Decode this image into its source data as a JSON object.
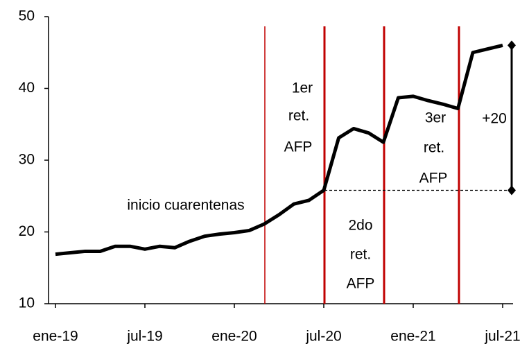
{
  "chart_data": {
    "type": "line",
    "categories": [
      "ene-19",
      null,
      null,
      null,
      null,
      null,
      "jul-19",
      null,
      null,
      null,
      null,
      null,
      "ene-20",
      null,
      null,
      null,
      null,
      null,
      "jul-20",
      null,
      null,
      null,
      null,
      null,
      "ene-21",
      null,
      null,
      null,
      null,
      null,
      "jul-21"
    ],
    "values": [
      16.9,
      17.1,
      17.3,
      17.3,
      18.0,
      18.0,
      17.6,
      18.0,
      17.8,
      18.7,
      19.4,
      19.7,
      19.9,
      20.2,
      21.1,
      22.4,
      23.9,
      24.4,
      25.8,
      33.1,
      34.4,
      33.8,
      32.5,
      38.7,
      38.9,
      38.3,
      37.8,
      37.2,
      45.0,
      45.5,
      46.0
    ],
    "color": "#000000",
    "ylim": [
      10,
      50
    ],
    "yticks": [
      10,
      20,
      30,
      40,
      50
    ],
    "annotations": [
      {
        "lines": [
          "inicio cuarentenas"
        ]
      },
      {
        "lines": [
          "1er",
          "ret.",
          "AFP"
        ]
      },
      {
        "lines": [
          "2do",
          "ret.",
          "AFP"
        ]
      },
      {
        "lines": [
          "3er",
          "ret.",
          "AFP"
        ]
      },
      {
        "lines": [
          "+20"
        ]
      }
    ],
    "event_color": "#c00000"
  }
}
